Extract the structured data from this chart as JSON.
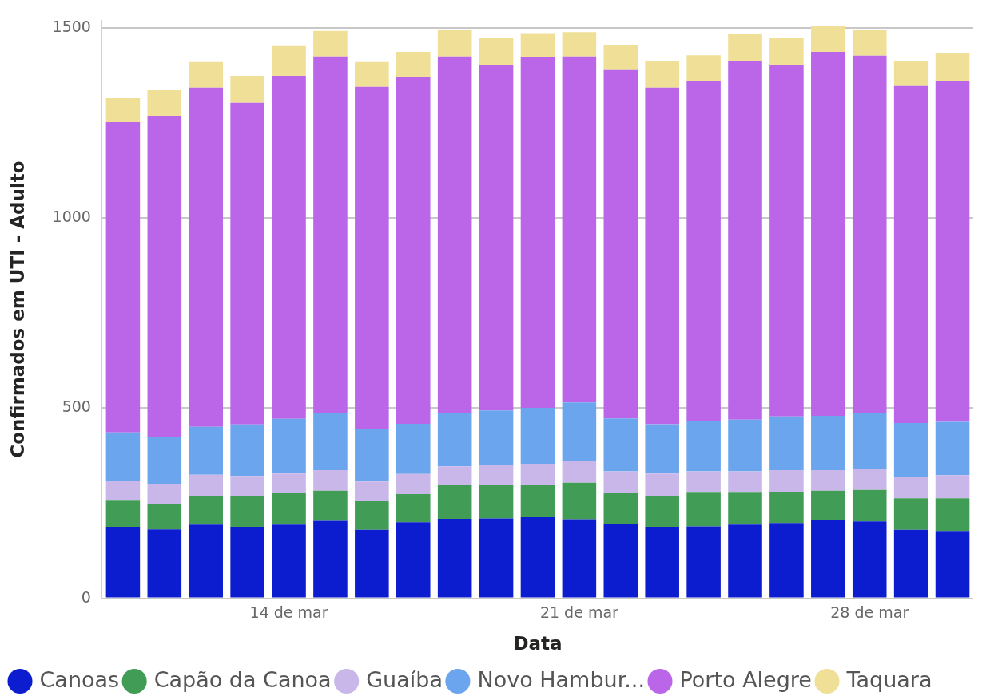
{
  "chart_data": {
    "type": "bar",
    "stacked": true,
    "xlabel": "Data",
    "ylabel": "Confirmados em UTI - Adulto",
    "categories": [
      null,
      null,
      null,
      null,
      "14 de mar",
      null,
      null,
      null,
      null,
      null,
      null,
      "21 de mar",
      null,
      null,
      null,
      null,
      null,
      null,
      "28 de mar",
      null,
      null
    ],
    "series": [
      {
        "name": "Canoas",
        "color": "#0c1ccf",
        "values": [
          188,
          181,
          194,
          188,
          194,
          204,
          180,
          200,
          209,
          210,
          213,
          208,
          196,
          188,
          189,
          194,
          198,
          207,
          202,
          180,
          177
        ]
      },
      {
        "name": "Capão da Canoa",
        "color": "#419c55",
        "values": [
          69,
          68,
          76,
          82,
          82,
          79,
          75,
          74,
          88,
          87,
          84,
          96,
          80,
          82,
          89,
          84,
          82,
          76,
          83,
          83,
          86
        ]
      },
      {
        "name": "Guaíba",
        "color": "#c8b7e8",
        "values": [
          52,
          52,
          55,
          52,
          52,
          54,
          52,
          53,
          50,
          55,
          57,
          56,
          58,
          58,
          56,
          56,
          57,
          54,
          54,
          55,
          61
        ]
      },
      {
        "name": "Novo Hambur...",
        "color": "#6aa5ed",
        "values": [
          127,
          124,
          126,
          135,
          144,
          151,
          139,
          132,
          139,
          142,
          147,
          155,
          139,
          130,
          133,
          136,
          141,
          143,
          149,
          143,
          140
        ]
      },
      {
        "name": "Porto Alegre",
        "color": "#bb66e9",
        "values": [
          816,
          844,
          892,
          846,
          902,
          937,
          899,
          912,
          939,
          909,
          922,
          910,
          916,
          885,
          892,
          944,
          923,
          957,
          939,
          886,
          897
        ]
      },
      {
        "name": "Taquara",
        "color": "#efdf97",
        "values": [
          63,
          67,
          67,
          71,
          78,
          67,
          65,
          66,
          69,
          70,
          63,
          64,
          65,
          69,
          69,
          69,
          72,
          69,
          67,
          65,
          72
        ]
      }
    ],
    "ylim": [
      0,
      1520
    ],
    "yticks": [
      0,
      500,
      1000,
      1500
    ],
    "grid": "y",
    "legend": "bottom left"
  }
}
